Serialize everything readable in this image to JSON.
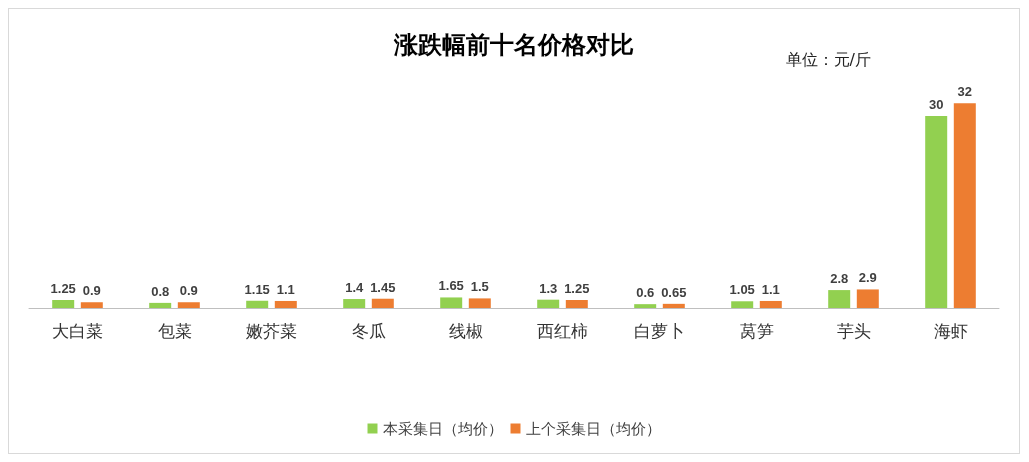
{
  "chart_data": {
    "type": "bar",
    "title": "涨跌幅前十名价格对比",
    "annotations": [
      "单位：元/斤"
    ],
    "categories": [
      "大白菜",
      "包菜",
      "嫩芥菜",
      "冬瓜",
      "线椒",
      "西红柿",
      "白萝卜",
      "莴笋",
      "芋头",
      "海虾"
    ],
    "series": [
      {
        "name": "本采集日（均价）",
        "color": "#92d050",
        "values": [
          1.25,
          0.8,
          1.15,
          1.4,
          1.65,
          1.3,
          0.6,
          1.05,
          2.8,
          30
        ]
      },
      {
        "name": "上个采集日（均价）",
        "color": "#ed7d31",
        "values": [
          0.9,
          0.9,
          1.1,
          1.45,
          1.5,
          1.25,
          0.65,
          1.1,
          2.9,
          32
        ]
      }
    ],
    "data_labels": true,
    "legend": "bottom"
  }
}
